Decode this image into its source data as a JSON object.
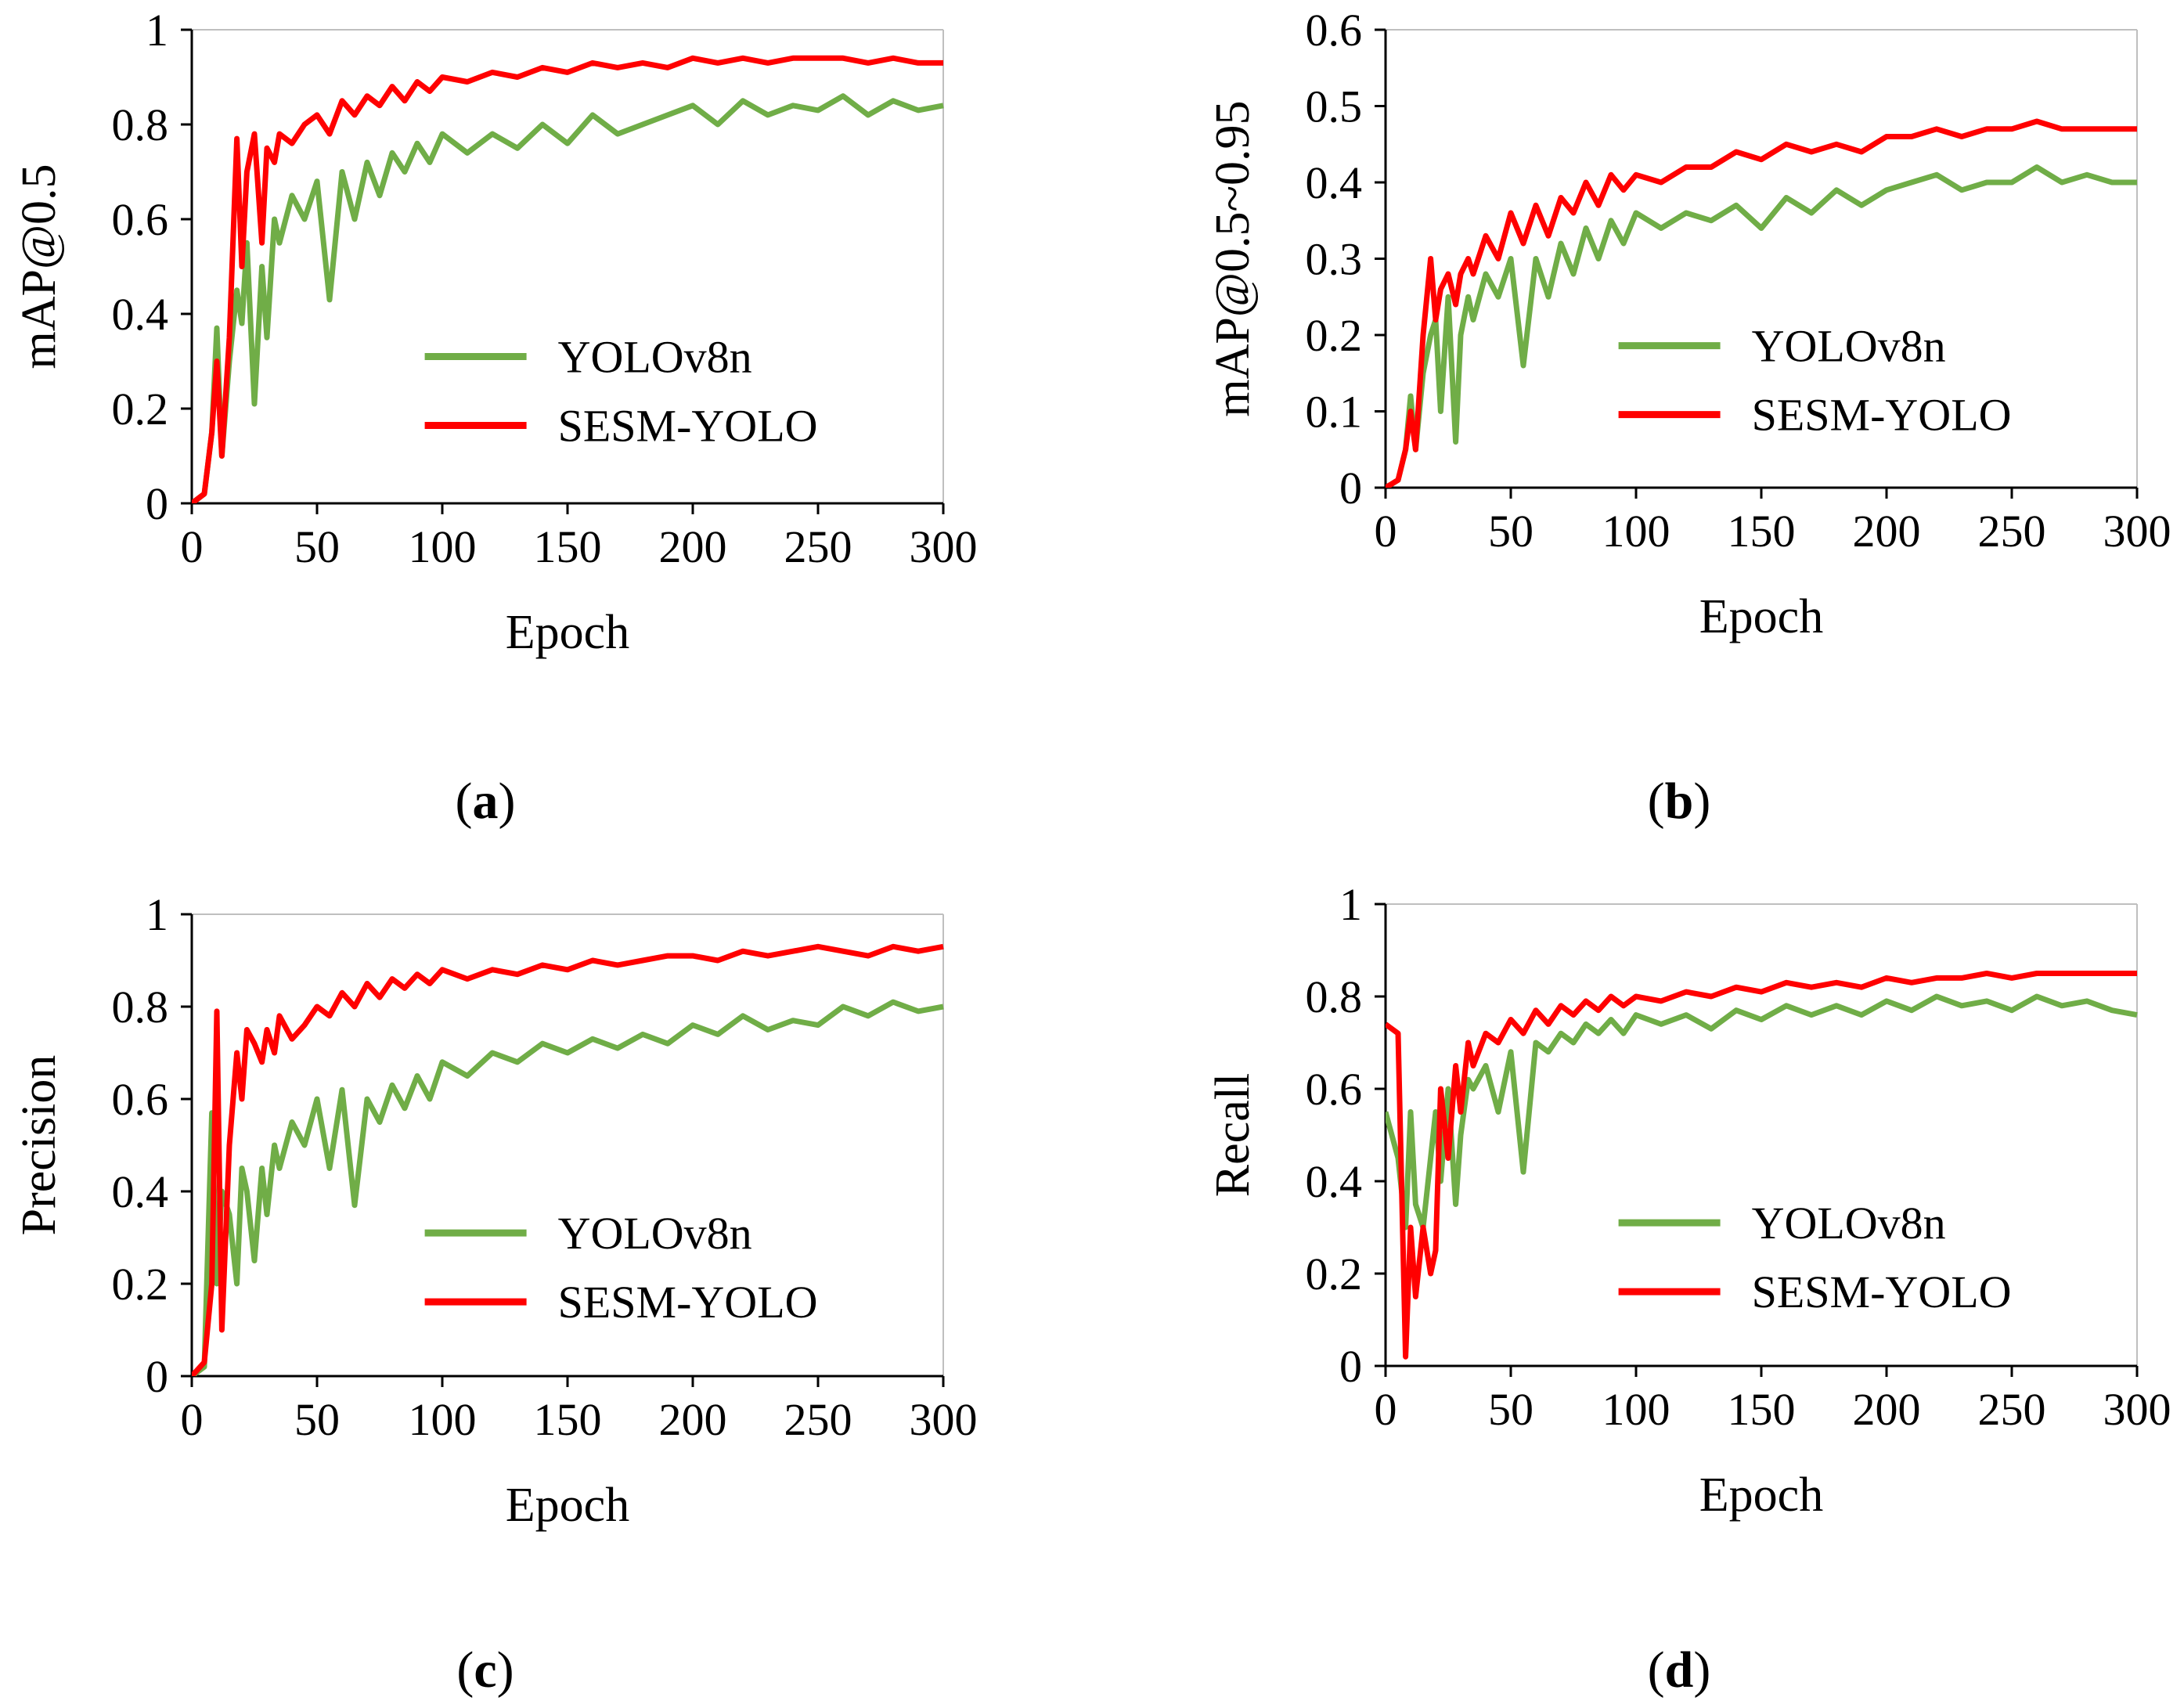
{
  "figure": {
    "captions": [
      "(a)",
      "(b)",
      "(c)",
      "(d)"
    ],
    "caption_letters": [
      "a",
      "b",
      "c",
      "d"
    ]
  },
  "colors": {
    "YOLOv8n": "#70ad47",
    "SESM-YOLO": "#ff0000",
    "axis": "#000000"
  },
  "chart_data": [
    {
      "panel": "a",
      "type": "line",
      "xlabel": "Epoch",
      "ylabel": "mAP@0.5",
      "xlim": [
        0,
        300
      ],
      "ylim": [
        0,
        1
      ],
      "xticks": [
        0,
        50,
        100,
        150,
        200,
        250,
        300
      ],
      "yticks": [
        0,
        0.2,
        0.4,
        0.6,
        0.8,
        1
      ],
      "ytick_labels": [
        "0",
        "0.2",
        "0.4",
        "0.6",
        "0.8",
        "1"
      ],
      "grid": false,
      "legend_position": "lower-right",
      "x": [
        0,
        5,
        8,
        10,
        12,
        15,
        18,
        20,
        22,
        25,
        28,
        30,
        33,
        35,
        40,
        45,
        50,
        55,
        60,
        65,
        70,
        75,
        80,
        85,
        90,
        95,
        100,
        110,
        120,
        130,
        140,
        150,
        160,
        170,
        180,
        190,
        200,
        210,
        220,
        230,
        240,
        250,
        260,
        270,
        280,
        290,
        300
      ],
      "series": [
        {
          "name": "YOLOv8n",
          "values": [
            0,
            0.02,
            0.15,
            0.37,
            0.1,
            0.3,
            0.45,
            0.38,
            0.55,
            0.21,
            0.5,
            0.35,
            0.6,
            0.55,
            0.65,
            0.6,
            0.68,
            0.43,
            0.7,
            0.6,
            0.72,
            0.65,
            0.74,
            0.7,
            0.76,
            0.72,
            0.78,
            0.74,
            0.78,
            0.75,
            0.8,
            0.76,
            0.82,
            0.78,
            0.8,
            0.82,
            0.84,
            0.8,
            0.85,
            0.82,
            0.84,
            0.83,
            0.86,
            0.82,
            0.85,
            0.83,
            0.84
          ]
        },
        {
          "name": "SESM-YOLO",
          "values": [
            0,
            0.02,
            0.15,
            0.3,
            0.1,
            0.35,
            0.77,
            0.5,
            0.7,
            0.78,
            0.55,
            0.75,
            0.72,
            0.78,
            0.76,
            0.8,
            0.82,
            0.78,
            0.85,
            0.82,
            0.86,
            0.84,
            0.88,
            0.85,
            0.89,
            0.87,
            0.9,
            0.89,
            0.91,
            0.9,
            0.92,
            0.91,
            0.93,
            0.92,
            0.93,
            0.92,
            0.94,
            0.93,
            0.94,
            0.93,
            0.94,
            0.94,
            0.94,
            0.93,
            0.94,
            0.93,
            0.93
          ]
        }
      ]
    },
    {
      "panel": "b",
      "type": "line",
      "xlabel": "Epoch",
      "ylabel": "mAP@0.5~0.95",
      "xlim": [
        0,
        300
      ],
      "ylim": [
        0,
        0.6
      ],
      "xticks": [
        0,
        50,
        100,
        150,
        200,
        250,
        300
      ],
      "yticks": [
        0,
        0.1,
        0.2,
        0.3,
        0.4,
        0.5,
        0.6
      ],
      "ytick_labels": [
        "0",
        "0.1",
        "0.2",
        "0.3",
        "0.4",
        "0.5",
        "0.6"
      ],
      "grid": false,
      "legend_position": "lower-right",
      "x": [
        0,
        5,
        8,
        10,
        12,
        15,
        18,
        20,
        22,
        25,
        28,
        30,
        33,
        35,
        40,
        45,
        50,
        55,
        60,
        65,
        70,
        75,
        80,
        85,
        90,
        95,
        100,
        110,
        120,
        130,
        140,
        150,
        160,
        170,
        180,
        190,
        200,
        210,
        220,
        230,
        240,
        250,
        260,
        270,
        280,
        290,
        300
      ],
      "series": [
        {
          "name": "YOLOv8n",
          "values": [
            0,
            0.01,
            0.05,
            0.12,
            0.05,
            0.15,
            0.2,
            0.22,
            0.1,
            0.25,
            0.06,
            0.2,
            0.25,
            0.22,
            0.28,
            0.25,
            0.3,
            0.16,
            0.3,
            0.25,
            0.32,
            0.28,
            0.34,
            0.3,
            0.35,
            0.32,
            0.36,
            0.34,
            0.36,
            0.35,
            0.37,
            0.34,
            0.38,
            0.36,
            0.39,
            0.37,
            0.39,
            0.4,
            0.41,
            0.39,
            0.4,
            0.4,
            0.42,
            0.4,
            0.41,
            0.4,
            0.4
          ]
        },
        {
          "name": "SESM-YOLO",
          "values": [
            0,
            0.01,
            0.05,
            0.1,
            0.05,
            0.2,
            0.3,
            0.22,
            0.26,
            0.28,
            0.24,
            0.28,
            0.3,
            0.28,
            0.33,
            0.3,
            0.36,
            0.32,
            0.37,
            0.33,
            0.38,
            0.36,
            0.4,
            0.37,
            0.41,
            0.39,
            0.41,
            0.4,
            0.42,
            0.42,
            0.44,
            0.43,
            0.45,
            0.44,
            0.45,
            0.44,
            0.46,
            0.46,
            0.47,
            0.46,
            0.47,
            0.47,
            0.48,
            0.47,
            0.47,
            0.47,
            0.47
          ]
        }
      ]
    },
    {
      "panel": "c",
      "type": "line",
      "xlabel": "Epoch",
      "ylabel": "Precision",
      "xlim": [
        0,
        300
      ],
      "ylim": [
        0,
        1
      ],
      "xticks": [
        0,
        50,
        100,
        150,
        200,
        250,
        300
      ],
      "yticks": [
        0,
        0.2,
        0.4,
        0.6,
        0.8,
        1
      ],
      "ytick_labels": [
        "0",
        "0.2",
        "0.4",
        "0.6",
        "0.8",
        "1"
      ],
      "grid": false,
      "legend_position": "lower-right",
      "x": [
        0,
        5,
        8,
        10,
        12,
        15,
        18,
        20,
        22,
        25,
        28,
        30,
        33,
        35,
        40,
        45,
        50,
        55,
        60,
        65,
        70,
        75,
        80,
        85,
        90,
        95,
        100,
        110,
        120,
        130,
        140,
        150,
        160,
        170,
        180,
        190,
        200,
        210,
        220,
        230,
        240,
        250,
        260,
        270,
        280,
        290,
        300
      ],
      "series": [
        {
          "name": "YOLOv8n",
          "values": [
            0,
            0.02,
            0.57,
            0.2,
            0.4,
            0.35,
            0.2,
            0.45,
            0.4,
            0.25,
            0.45,
            0.35,
            0.5,
            0.45,
            0.55,
            0.5,
            0.6,
            0.45,
            0.62,
            0.37,
            0.6,
            0.55,
            0.63,
            0.58,
            0.65,
            0.6,
            0.68,
            0.65,
            0.7,
            0.68,
            0.72,
            0.7,
            0.73,
            0.71,
            0.74,
            0.72,
            0.76,
            0.74,
            0.78,
            0.75,
            0.77,
            0.76,
            0.8,
            0.78,
            0.81,
            0.79,
            0.8
          ]
        },
        {
          "name": "SESM-YOLO",
          "values": [
            0,
            0.03,
            0.2,
            0.79,
            0.1,
            0.5,
            0.7,
            0.6,
            0.75,
            0.72,
            0.68,
            0.75,
            0.7,
            0.78,
            0.73,
            0.76,
            0.8,
            0.78,
            0.83,
            0.8,
            0.85,
            0.82,
            0.86,
            0.84,
            0.87,
            0.85,
            0.88,
            0.86,
            0.88,
            0.87,
            0.89,
            0.88,
            0.9,
            0.89,
            0.9,
            0.91,
            0.91,
            0.9,
            0.92,
            0.91,
            0.92,
            0.93,
            0.92,
            0.91,
            0.93,
            0.92,
            0.93
          ]
        }
      ]
    },
    {
      "panel": "d",
      "type": "line",
      "xlabel": "Epoch",
      "ylabel": "Recall",
      "xlim": [
        0,
        300
      ],
      "ylim": [
        0,
        1
      ],
      "xticks": [
        0,
        50,
        100,
        150,
        200,
        250,
        300
      ],
      "yticks": [
        0,
        0.2,
        0.4,
        0.6,
        0.8,
        1
      ],
      "ytick_labels": [
        "0",
        "0.2",
        "0.4",
        "0.6",
        "0.8",
        "1"
      ],
      "grid": false,
      "legend_position": "lower-right",
      "x": [
        0,
        5,
        8,
        10,
        12,
        15,
        18,
        20,
        22,
        25,
        28,
        30,
        33,
        35,
        40,
        45,
        50,
        55,
        60,
        65,
        70,
        75,
        80,
        85,
        90,
        95,
        100,
        110,
        120,
        130,
        140,
        150,
        160,
        170,
        180,
        190,
        200,
        210,
        220,
        230,
        240,
        250,
        260,
        270,
        280,
        290,
        300
      ],
      "series": [
        {
          "name": "YOLOv8n",
          "values": [
            0.55,
            0.45,
            0.3,
            0.55,
            0.35,
            0.3,
            0.45,
            0.55,
            0.4,
            0.6,
            0.35,
            0.5,
            0.62,
            0.6,
            0.65,
            0.55,
            0.68,
            0.42,
            0.7,
            0.68,
            0.72,
            0.7,
            0.74,
            0.72,
            0.75,
            0.72,
            0.76,
            0.74,
            0.76,
            0.73,
            0.77,
            0.75,
            0.78,
            0.76,
            0.78,
            0.76,
            0.79,
            0.77,
            0.8,
            0.78,
            0.79,
            0.77,
            0.8,
            0.78,
            0.79,
            0.77,
            0.76
          ]
        },
        {
          "name": "SESM-YOLO",
          "values": [
            0.74,
            0.72,
            0.02,
            0.3,
            0.15,
            0.3,
            0.2,
            0.25,
            0.6,
            0.45,
            0.65,
            0.55,
            0.7,
            0.65,
            0.72,
            0.7,
            0.75,
            0.72,
            0.77,
            0.74,
            0.78,
            0.76,
            0.79,
            0.77,
            0.8,
            0.78,
            0.8,
            0.79,
            0.81,
            0.8,
            0.82,
            0.81,
            0.83,
            0.82,
            0.83,
            0.82,
            0.84,
            0.83,
            0.84,
            0.84,
            0.85,
            0.84,
            0.85,
            0.85,
            0.85,
            0.85,
            0.85
          ]
        }
      ]
    }
  ]
}
